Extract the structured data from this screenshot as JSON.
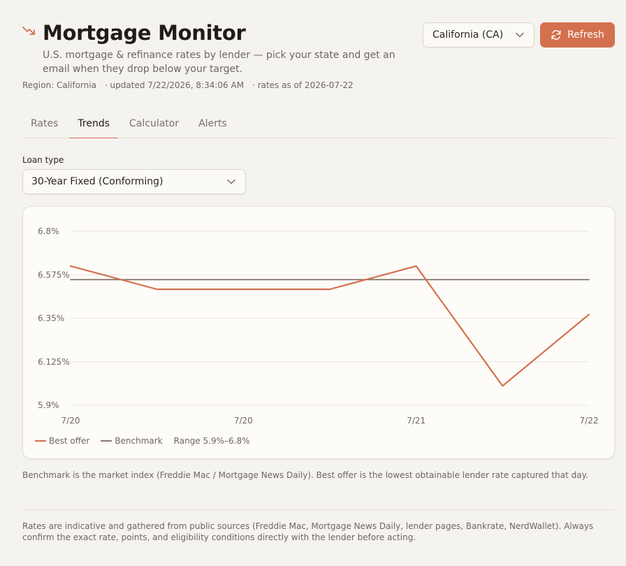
{
  "app": {
    "title": "Mortgage Monitor",
    "subtitle": "U.S. mortgage & refinance rates by lender — pick your state and get an email when they drop below your target.",
    "region": "Region: California",
    "updated": "· updated 7/22/2026, 8:34:06 AM",
    "rates_as_of": "· rates as of 2026-07-22",
    "icon": "trending-down-icon",
    "accent_color": "#d4704d"
  },
  "state_select": {
    "value": "California (CA)"
  },
  "refresh": {
    "label": "Refresh",
    "icon": "refresh-icon"
  },
  "tabs": [
    {
      "label": "Rates",
      "active": false
    },
    {
      "label": "Trends",
      "active": true
    },
    {
      "label": "Calculator",
      "active": false
    },
    {
      "label": "Alerts",
      "active": false
    }
  ],
  "loan_type": {
    "label": "Loan type",
    "value": "30-Year Fixed (Conforming)"
  },
  "chart_data": {
    "type": "line",
    "x_tick_labels": [
      "7/20",
      "7/20",
      "7/21",
      "7/22"
    ],
    "y_tick_labels": [
      "6.8%",
      "6.575%",
      "6.35%",
      "6.125%",
      "5.9%"
    ],
    "ylim": [
      5.9,
      6.8
    ],
    "grid": true,
    "legend_position": "bottom-left",
    "series": [
      {
        "name": "Best offer",
        "color": "#d4704d",
        "values": [
          6.62,
          6.5,
          6.5,
          6.5,
          6.62,
          6.0,
          6.37
        ]
      },
      {
        "name": "Benchmark",
        "color": "#8a7a6e",
        "values": [
          6.55,
          6.55,
          6.55,
          6.55,
          6.55,
          6.55,
          6.55
        ]
      }
    ],
    "range_label": "Range 5.9%–6.8%"
  },
  "note": "Benchmark is the market index (Freddie Mac / Mortgage News Daily). Best offer is the lowest obtainable lender rate captured that day.",
  "disclaimer": "Rates are indicative and gathered from public sources (Freddie Mac, Mortgage News Daily, lender pages, Bankrate, NerdWallet). Always confirm the exact rate, points, and eligibility conditions directly with the lender before acting."
}
